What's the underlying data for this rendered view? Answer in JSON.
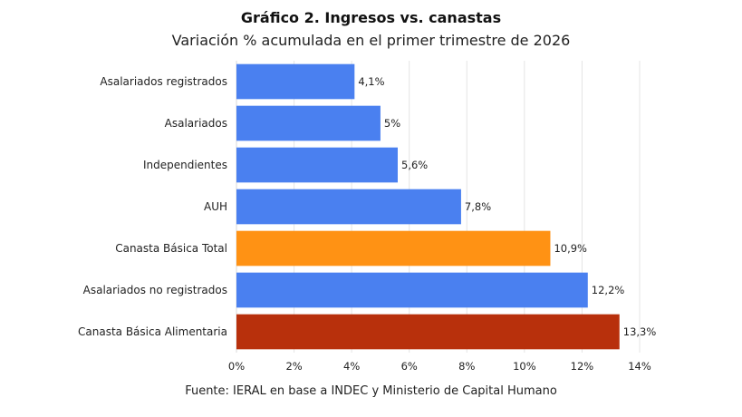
{
  "chart_data": {
    "type": "bar",
    "orientation": "horizontal",
    "title": "Gráfico 2. Ingresos vs. canastas",
    "subtitle": "Variación % acumulada en el primer trimestre de 2026",
    "source": "Fuente: IERAL en base a INDEC y Ministerio de Capital Humano",
    "categories": [
      "Asalariados registrados",
      "Asalariados",
      "Independientes",
      "AUH",
      "Canasta Básica Total",
      "Asalariados no registrados",
      "Canasta Básica Alimentaria"
    ],
    "values": [
      4.1,
      5.0,
      5.6,
      7.8,
      10.9,
      12.2,
      13.3
    ],
    "value_labels": [
      "4,1%",
      "5%",
      "5,6%",
      "7,8%",
      "10,9%",
      "12,2%",
      "13,3%"
    ],
    "bar_colors": [
      "#4a80f0",
      "#4a80f0",
      "#4a80f0",
      "#4a80f0",
      "#ff9214",
      "#4a80f0",
      "#b8300c"
    ],
    "xlim": [
      0,
      14
    ],
    "x_ticks": [
      0,
      2,
      4,
      6,
      8,
      10,
      12,
      14
    ],
    "x_tick_labels": [
      "0%",
      "2%",
      "4%",
      "6%",
      "8%",
      "10%",
      "12%",
      "14%"
    ],
    "grid": "vertical",
    "legend": "none"
  }
}
